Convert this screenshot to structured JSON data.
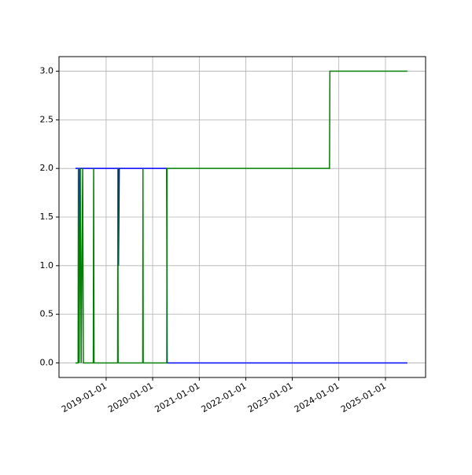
{
  "chart_data": {
    "type": "line",
    "xlim": [
      "2017-12-27",
      "2025-11-12"
    ],
    "xticks": [
      "2019-01-01",
      "2020-01-01",
      "2021-01-01",
      "2022-01-01",
      "2023-01-01",
      "2024-01-01",
      "2025-01-01"
    ],
    "ylim": [
      -0.15,
      3.15
    ],
    "yticks": [
      {
        "value": 0,
        "label": "0.0"
      },
      {
        "value": 0.5,
        "label": "0.5"
      },
      {
        "value": 1,
        "label": "1.0"
      },
      {
        "value": 1.5,
        "label": "1.5"
      },
      {
        "value": 2,
        "label": "2.0"
      },
      {
        "value": 2.5,
        "label": "2.5"
      },
      {
        "value": 3,
        "label": "3.0"
      }
    ],
    "grid": true,
    "series": [
      {
        "color": "#0000ff",
        "x": [
          "2018-05-05",
          "2018-05-31",
          "2018-06-03",
          "2018-06-10",
          "2019-04-05",
          "2019-04-08",
          "2019-04-14",
          "2020-04-20",
          "2020-04-24",
          "2025-06-22"
        ],
        "values": [
          2,
          2,
          0,
          2,
          2,
          1,
          2,
          2,
          0,
          0
        ]
      },
      {
        "color": "#008000",
        "x": [
          "2018-05-05",
          "2018-05-26",
          "2018-05-28",
          "2018-06-01",
          "2018-06-12",
          "2018-06-19",
          "2018-07-01",
          "2018-07-06",
          "2018-09-22",
          "2018-09-25",
          "2018-09-28",
          "2019-04-01",
          "2019-04-03",
          "2019-04-05",
          "2019-10-15",
          "2019-10-17",
          "2019-10-19",
          "2020-04-21",
          "2020-04-23",
          "2023-10-20",
          "2023-10-23",
          "2025-06-22"
        ],
        "values": [
          0,
          0,
          2,
          0,
          2,
          0,
          2,
          0,
          0,
          2,
          0,
          0,
          2,
          0,
          0,
          2,
          0,
          0,
          2,
          2,
          3,
          3
        ]
      }
    ]
  }
}
